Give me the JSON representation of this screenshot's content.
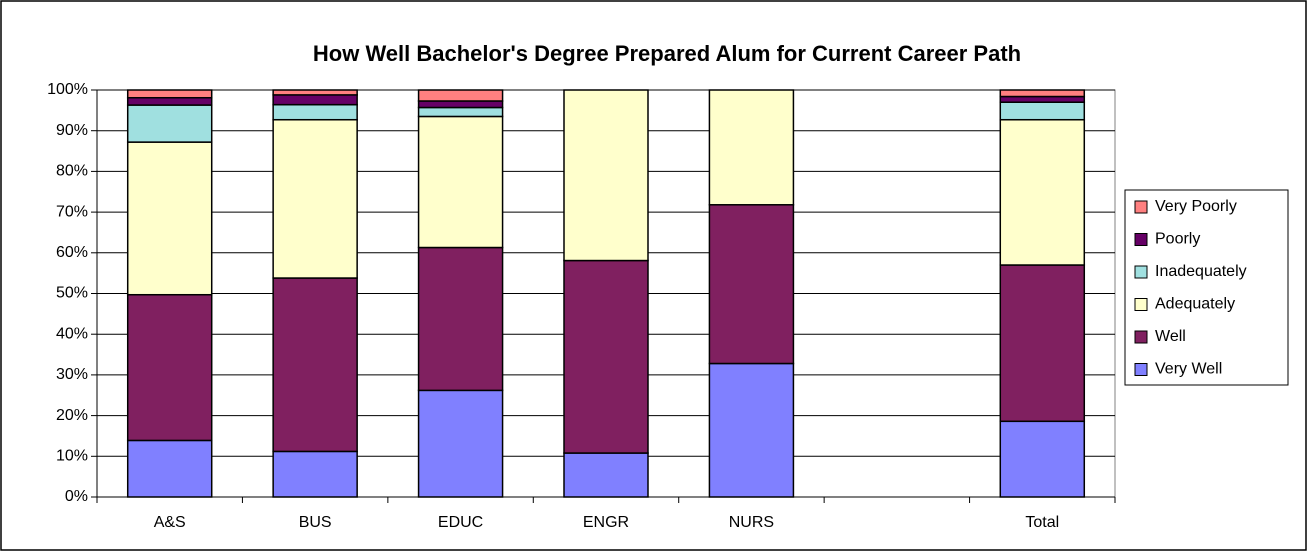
{
  "chart_data": {
    "type": "stacked_bar",
    "title": "How Well Bachelor's Degree Prepared Alum for Current Career Path",
    "categories": [
      "A&S",
      "BUS",
      "EDUC",
      "ENGR",
      "NURS",
      null,
      "Total"
    ],
    "series": [
      {
        "name": "Very Well",
        "color": "#8080ff",
        "values": [
          13.9,
          11.2,
          26.2,
          10.8,
          32.8,
          null,
          18.6
        ]
      },
      {
        "name": "Well",
        "color": "#802060",
        "values": [
          35.8,
          42.6,
          35.1,
          47.3,
          39.0,
          null,
          38.4
        ]
      },
      {
        "name": "Adequately",
        "color": "#ffffcc",
        "values": [
          37.5,
          38.9,
          32.2,
          41.9,
          28.2,
          null,
          35.7
        ]
      },
      {
        "name": "Inadequately",
        "color": "#a0e0e0",
        "values": [
          9.1,
          3.7,
          2.2,
          0,
          0,
          null,
          4.3
        ]
      },
      {
        "name": "Poorly",
        "color": "#660066",
        "values": [
          1.8,
          2.4,
          1.6,
          0,
          0,
          null,
          1.4
        ]
      },
      {
        "name": "Very Poorly",
        "color": "#ff8080",
        "values": [
          1.9,
          1.2,
          2.7,
          0,
          0,
          null,
          1.6
        ]
      }
    ],
    "ylim": [
      0,
      100
    ],
    "yticks": [
      {
        "value": 0,
        "label": "0%"
      },
      {
        "value": 10,
        "label": "10%"
      },
      {
        "value": 20,
        "label": "20%"
      },
      {
        "value": 30,
        "label": "30%"
      },
      {
        "value": 40,
        "label": "40%"
      },
      {
        "value": 50,
        "label": "50%"
      },
      {
        "value": 60,
        "label": "60%"
      },
      {
        "value": 70,
        "label": "70%"
      },
      {
        "value": 80,
        "label": "80%"
      },
      {
        "value": 90,
        "label": "90%"
      },
      {
        "value": 100,
        "label": "100%"
      }
    ],
    "grid": true,
    "legend": "right"
  }
}
